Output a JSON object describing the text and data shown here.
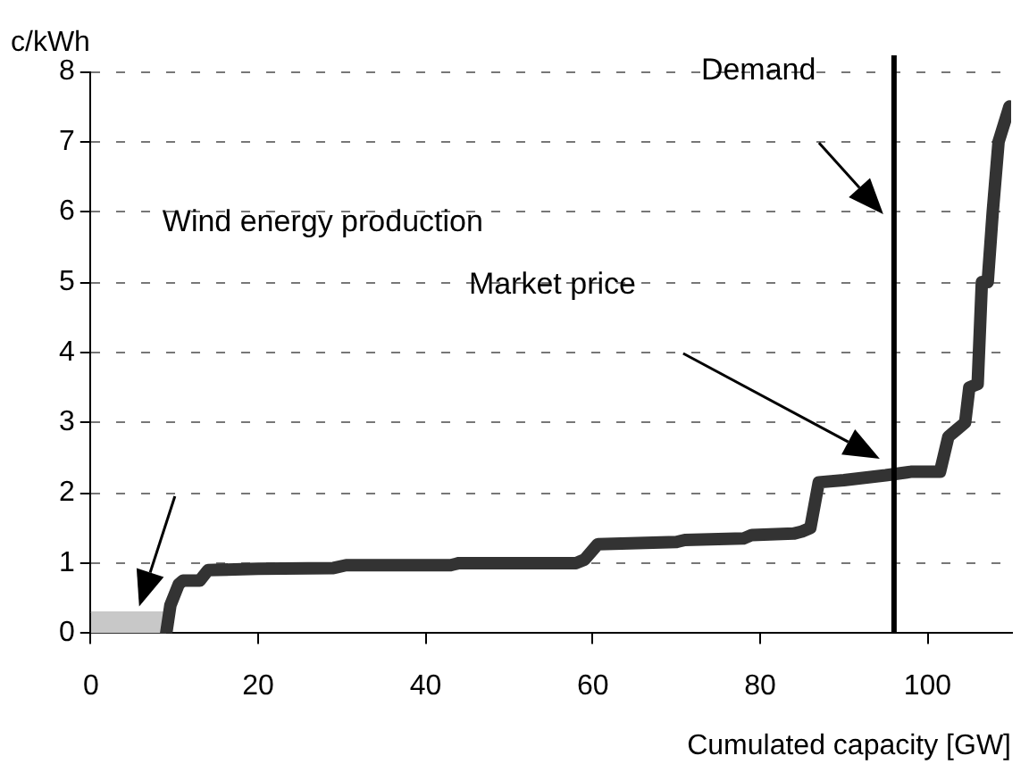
{
  "chart_data": {
    "type": "line",
    "xlabel": "Cumulated capacity [GW]",
    "ylabel": "c/kWh",
    "xlim": [
      0,
      110
    ],
    "xticks": [
      0,
      20,
      40,
      60,
      80,
      100
    ],
    "ylim": [
      0,
      8
    ],
    "yticks": [
      0,
      1,
      2,
      3,
      4,
      5,
      6,
      7,
      8
    ],
    "grid": "y",
    "legend": false,
    "marker": "none",
    "line_style": "solid",
    "series": [
      {
        "color": "#333333",
        "x": [
          9,
          9.5,
          10.5,
          11,
          13,
          14,
          20,
          29,
          30.5,
          43,
          44,
          58,
          59,
          60.6,
          70,
          71,
          78,
          79,
          84,
          85,
          86,
          87,
          90,
          95,
          98,
          101.5,
          102.5,
          103.5,
          104.5,
          105,
          106,
          106.5,
          107.2,
          107.8,
          108.5,
          109.8
        ],
        "values": [
          0,
          0.4,
          0.7,
          0.75,
          0.75,
          0.9,
          0.92,
          0.93,
          0.97,
          0.97,
          1.0,
          1.0,
          1.05,
          1.27,
          1.3,
          1.33,
          1.35,
          1.4,
          1.42,
          1.45,
          1.5,
          2.15,
          2.18,
          2.25,
          2.3,
          2.3,
          2.8,
          2.9,
          3.0,
          3.5,
          3.55,
          5.0,
          5.0,
          6.0,
          7.0,
          7.5
        ]
      },
      {
        "type": "area",
        "color": "#c8c8c8",
        "x": [
          0,
          4.5,
          9
        ],
        "values": [
          0.3,
          0.3,
          0.3
        ]
      }
    ],
    "ref_lines": [
      {
        "axis": "x",
        "value": 96,
        "label": "Demand",
        "color": "#000000"
      }
    ],
    "annotations": [
      "Wind energy production",
      "Market price"
    ]
  }
}
